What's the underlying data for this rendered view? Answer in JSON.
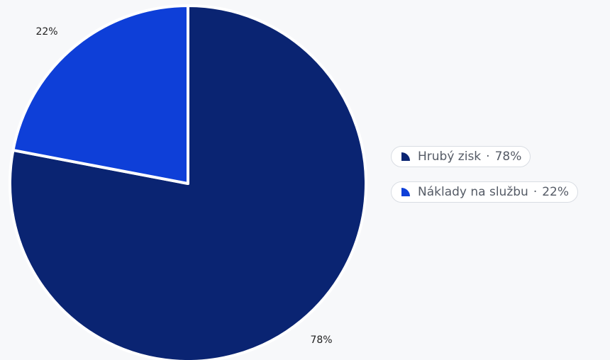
{
  "chart_data": {
    "type": "pie",
    "slices": [
      {
        "name": "Hrubý zisk",
        "value": 78,
        "label": "78%",
        "color": "#0a2472"
      },
      {
        "name": "Náklady na službu",
        "value": 22,
        "label": "22%",
        "color": "#0e3fd8"
      }
    ],
    "start_angle": "12 o'clock",
    "direction": "clockwise",
    "legend": {
      "position": "right",
      "items": [
        {
          "name": "Hrubý zisk",
          "percent": "78%",
          "color": "#0a2472",
          "icon": "quarter-pie-icon"
        },
        {
          "name": "Náklady na službu",
          "percent": "22%",
          "color": "#0e3fd8",
          "icon": "quarter-pie-icon"
        }
      ],
      "separator": "·"
    }
  }
}
